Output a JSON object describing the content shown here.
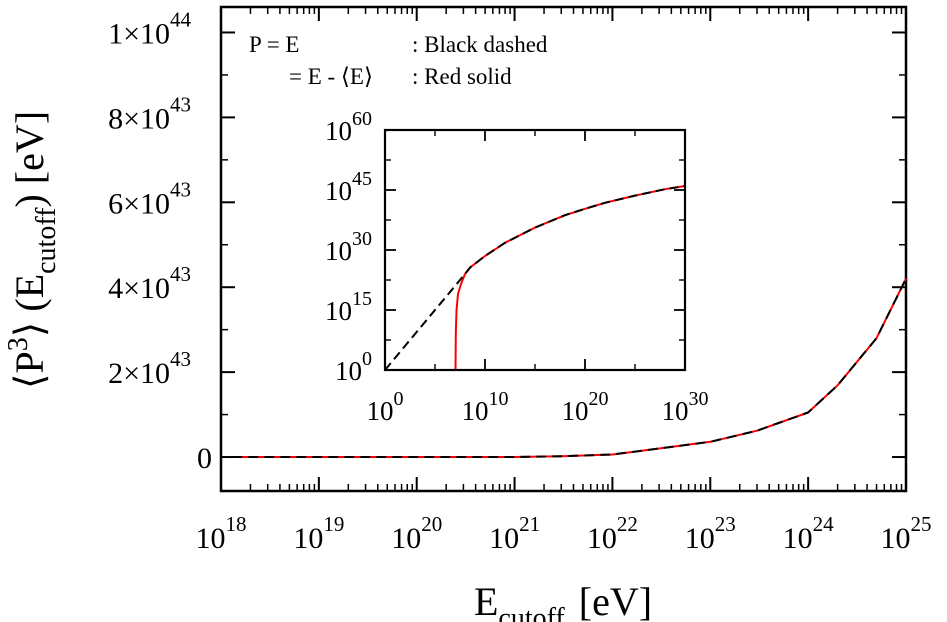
{
  "chart_data": [
    {
      "type": "line",
      "xscale": "log",
      "xlim": [
        1e+18,
        1e+25
      ],
      "ylim": [
        -8e+42,
        1.06e+44
      ],
      "x_ticks": [
        {
          "b": "10",
          "e": "18"
        },
        {
          "b": "10",
          "e": "19"
        },
        {
          "b": "10",
          "e": "20"
        },
        {
          "b": "10",
          "e": "21"
        },
        {
          "b": "10",
          "e": "22"
        },
        {
          "b": "10",
          "e": "23"
        },
        {
          "b": "10",
          "e": "24"
        },
        {
          "b": "10",
          "e": "25"
        }
      ],
      "y_ticks": [
        {
          "value": 0,
          "m": "0",
          "e": ""
        },
        {
          "value": 2e+43,
          "m": "2×10",
          "e": "43"
        },
        {
          "value": 4e+43,
          "m": "4×10",
          "e": "43"
        },
        {
          "value": 6e+43,
          "m": "6×10",
          "e": "43"
        },
        {
          "value": 8e+43,
          "m": "8×10",
          "e": "43"
        },
        {
          "value": 1e+44,
          "m": "1×10",
          "e": "44"
        }
      ],
      "xlabel": {
        "main": "E",
        "sub": "cutoff",
        "unit": "[eV]"
      },
      "ylabel": {
        "pre": "⟨P",
        "sup": "3",
        "mid": "⟩ (E",
        "sub": "cutoff",
        "post": ")  [eV]"
      },
      "legend": {
        "position": "top-left",
        "lines": [
          {
            "a": "P = E",
            "b": ": Black dashed"
          },
          {
            "a": "= E - ⟨E⟩",
            "b": ": Red solid"
          }
        ]
      },
      "series": [
        {
          "color": "#000000",
          "style": "dashed",
          "x": [
            1.3e+18,
            1e+19,
            1e+20,
            1e+21,
            3e+21,
            1e+22,
            3e+22,
            1e+23,
            3e+23,
            1e+24,
            2e+24,
            5e+24,
            1e+25
          ],
          "y": [
            0,
            0,
            0,
            1e+40,
            2e+41,
            6e+41,
            2e+42,
            3.6e+42,
            6.2e+42,
            1.05e+43,
            1.69e+43,
            2.8e+43,
            4.2e+43
          ]
        },
        {
          "color": "#ff0000",
          "style": "solid",
          "x": [
            1.3e+18,
            1e+19,
            1e+20,
            1e+21,
            3e+21,
            1e+22,
            3e+22,
            1e+23,
            3e+23,
            1e+24,
            2e+24,
            5e+24,
            1e+25
          ],
          "y": [
            0,
            0,
            0,
            1e+40,
            2e+41,
            6e+41,
            2e+42,
            3.6e+42,
            6.2e+42,
            1.05e+43,
            1.69e+43,
            2.8e+43,
            4.2e+43
          ]
        }
      ]
    },
    {
      "type": "line",
      "inset": true,
      "xscale": "log",
      "yscale": "log",
      "xlim": [
        1,
        1e+30
      ],
      "ylim": [
        1,
        1e+60
      ],
      "x_ticks": [
        {
          "b": "10",
          "e": "0"
        },
        {
          "b": "10",
          "e": "10"
        },
        {
          "b": "10",
          "e": "20"
        },
        {
          "b": "10",
          "e": "30"
        }
      ],
      "y_ticks": [
        {
          "b": "10",
          "e": "0"
        },
        {
          "b": "10",
          "e": "15"
        },
        {
          "b": "10",
          "e": "30"
        },
        {
          "b": "10",
          "e": "45"
        },
        {
          "b": "10",
          "e": "60"
        }
      ],
      "series": [
        {
          "color": "#000000",
          "style": "dashed",
          "log_x": [
            0,
            8,
            8.5,
            10,
            12,
            15,
            18,
            20,
            22,
            25,
            28,
            30
          ],
          "log_y": [
            0,
            24,
            25.6,
            28.5,
            31.8,
            35.6,
            38.7,
            40.3,
            41.8,
            43.6,
            45.2,
            46
          ]
        },
        {
          "color": "#ff0000",
          "style": "solid",
          "log_x": [
            7.05,
            7.08,
            7.15,
            7.3,
            7.6,
            8,
            8.5,
            10,
            12,
            15,
            18,
            20,
            22,
            25,
            28,
            30
          ],
          "log_y": [
            0,
            9,
            15,
            19,
            21.5,
            24,
            25.6,
            28.5,
            31.8,
            35.6,
            38.7,
            40.3,
            41.8,
            43.6,
            45.2,
            46
          ]
        }
      ]
    }
  ]
}
